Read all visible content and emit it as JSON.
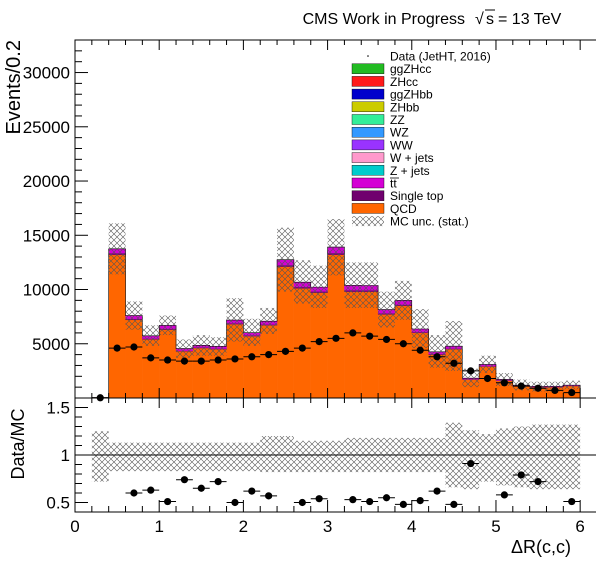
{
  "chart_data": [
    {
      "type": "bar",
      "header": {
        "title": "CMS Work in Progress",
        "energy_label": "= 13 TeV",
        "sqrt_s_symbol": "s"
      },
      "ylabel": "Events/0.2",
      "xlabel": "",
      "xlim": [
        0,
        6.2
      ],
      "ylim": [
        0,
        33000
      ],
      "x_edges": [
        0.2,
        0.4,
        0.6,
        0.8,
        1.0,
        1.2,
        1.4,
        1.6,
        1.8,
        2.0,
        2.2,
        2.4,
        2.6,
        2.8,
        3.0,
        3.2,
        3.4,
        3.6,
        3.8,
        4.0,
        4.2,
        4.4,
        4.6,
        4.8,
        5.0,
        5.2,
        5.4,
        5.6,
        5.8,
        6.0
      ],
      "stack_order_bottom_to_top": [
        "QCD",
        "Single top",
        "tt"
      ],
      "series": [
        {
          "name": "QCD",
          "color": "#ff6600",
          "values": [
            40,
            13200,
            7200,
            5400,
            6300,
            4300,
            4600,
            4500,
            6800,
            5700,
            6700,
            12100,
            10100,
            9700,
            13200,
            9800,
            9800,
            7700,
            8500,
            6000,
            4000,
            4500,
            1700,
            2900,
            1600,
            1100,
            1000,
            1000,
            1100
          ]
        },
        {
          "name": "Single top",
          "color": "#70006e",
          "values": [
            0,
            150,
            100,
            80,
            90,
            60,
            60,
            60,
            80,
            70,
            80,
            150,
            130,
            120,
            160,
            130,
            120,
            100,
            110,
            80,
            60,
            60,
            30,
            40,
            25,
            20,
            15,
            15,
            20
          ]
        },
        {
          "name": "tt",
          "color": "#d400d4",
          "values": [
            0,
            400,
            300,
            250,
            300,
            200,
            200,
            200,
            300,
            250,
            300,
            500,
            450,
            400,
            550,
            450,
            450,
            350,
            380,
            280,
            200,
            220,
            100,
            150,
            90,
            60,
            50,
            50,
            60
          ]
        }
      ],
      "mc_total": [
        40,
        13750,
        7600,
        5730,
        6690,
        4560,
        4860,
        4760,
        7180,
        6020,
        7080,
        12750,
        10680,
        10220,
        13910,
        10380,
        10370,
        8150,
        8990,
        6360,
        4260,
        4780,
        1830,
        3090,
        1715,
        1180,
        1065,
        1065,
        1180
      ],
      "mc_unc_up": [
        80,
        16100,
        8900,
        6700,
        7600,
        5400,
        5800,
        5600,
        9200,
        7300,
        8300,
        15700,
        12700,
        12200,
        16500,
        12500,
        12500,
        9800,
        10800,
        8200,
        5800,
        7100,
        2700,
        3900,
        2300,
        1700,
        1500,
        1500,
        1600
      ],
      "mc_unc_down": [
        0,
        11400,
        6300,
        4800,
        5800,
        3700,
        3900,
        3900,
        5200,
        4800,
        5900,
        9800,
        8700,
        8300,
        11300,
        8300,
        8300,
        6500,
        7200,
        4600,
        2800,
        2500,
        1000,
        2300,
        1100,
        700,
        600,
        600,
        800
      ],
      "data_points": {
        "name": "Data (JetHT, 2016)",
        "x": [
          0.3,
          0.5,
          0.7,
          0.9,
          1.1,
          1.3,
          1.5,
          1.7,
          1.9,
          2.1,
          2.3,
          2.5,
          2.7,
          2.9,
          3.1,
          3.3,
          3.5,
          3.7,
          3.9,
          4.1,
          4.3,
          4.5,
          4.7,
          4.9,
          5.1,
          5.3,
          5.5,
          5.7,
          5.9
        ],
        "y": [
          20,
          4600,
          4700,
          3700,
          3500,
          3400,
          3400,
          3500,
          3600,
          3800,
          4000,
          4300,
          4600,
          5200,
          5500,
          6000,
          5700,
          5400,
          5000,
          4400,
          3800,
          3200,
          2500,
          1800,
          1400,
          1100,
          900,
          700,
          500
        ]
      },
      "legend": {
        "placement": "top-right",
        "entries": [
          {
            "label": "Data (JetHT, 2016)",
            "style": "point",
            "color": "#000000"
          },
          {
            "label": "ggZHcc",
            "style": "box",
            "color": "#22bb22"
          },
          {
            "label": "ZHcc",
            "style": "box",
            "color": "#ff1a1a"
          },
          {
            "label": "ggZHbb",
            "style": "box",
            "color": "#0000cc"
          },
          {
            "label": "ZHbb",
            "style": "box",
            "color": "#cccc00"
          },
          {
            "label": "ZZ",
            "style": "box",
            "color": "#33ee99"
          },
          {
            "label": "WZ",
            "style": "box",
            "color": "#3399ff"
          },
          {
            "label": "WW",
            "style": "box",
            "color": "#9933ff"
          },
          {
            "label": "W + jets",
            "style": "box",
            "color": "#ff99cc"
          },
          {
            "label": "Z + jets",
            "style": "box",
            "color": "#00cccc"
          },
          {
            "label": "tt",
            "style": "box",
            "color": "#d400d4",
            "overline": true
          },
          {
            "label": "Single top",
            "style": "box",
            "color": "#70006e"
          },
          {
            "label": "QCD",
            "style": "box",
            "color": "#ff6600"
          },
          {
            "label": "MC unc. (stat.)",
            "style": "hatch",
            "color": "#000000"
          }
        ]
      },
      "y_ticks": [
        5000,
        10000,
        15000,
        20000,
        25000,
        30000
      ],
      "grid": false
    },
    {
      "type": "scatter",
      "ylabel": "Data/MC",
      "xlabel": "ΔR(c,c)",
      "xlim": [
        0,
        6.2
      ],
      "ylim": [
        0.4,
        1.6
      ],
      "reference_line": 1,
      "x_ticks": [
        0,
        1,
        2,
        3,
        4,
        5,
        6
      ],
      "y_ticks": [
        0.5,
        1,
        1.5
      ],
      "ratio_unc_up": [
        1.25,
        1.13,
        1.13,
        1.13,
        1.13,
        1.13,
        1.13,
        1.13,
        1.13,
        1.13,
        1.2,
        1.2,
        1.15,
        1.15,
        1.15,
        1.18,
        1.18,
        1.18,
        1.18,
        1.18,
        1.18,
        1.34,
        1.26,
        1.22,
        1.28,
        1.3,
        1.32,
        1.32,
        1.32
      ],
      "ratio_unc_down": [
        0.72,
        0.83,
        0.83,
        0.83,
        0.83,
        0.83,
        0.83,
        0.83,
        0.83,
        0.83,
        0.82,
        0.82,
        0.82,
        0.82,
        0.82,
        0.82,
        0.82,
        0.82,
        0.82,
        0.82,
        0.82,
        0.66,
        0.64,
        0.72,
        0.68,
        0.66,
        0.64,
        0.64,
        0.64
      ],
      "points": {
        "x": [
          0.7,
          0.9,
          1.1,
          1.3,
          1.5,
          1.7,
          1.9,
          2.1,
          2.3,
          2.7,
          2.9,
          3.3,
          3.5,
          3.7,
          3.9,
          4.1,
          4.3,
          4.5,
          4.7,
          5.1,
          5.3,
          5.5,
          5.9
        ],
        "y": [
          0.6,
          0.63,
          0.51,
          0.74,
          0.65,
          0.72,
          0.5,
          0.62,
          0.57,
          0.5,
          0.54,
          0.53,
          0.51,
          0.55,
          0.48,
          0.52,
          0.62,
          0.48,
          0.91,
          0.58,
          0.79,
          0.72,
          0.51
        ]
      }
    }
  ]
}
